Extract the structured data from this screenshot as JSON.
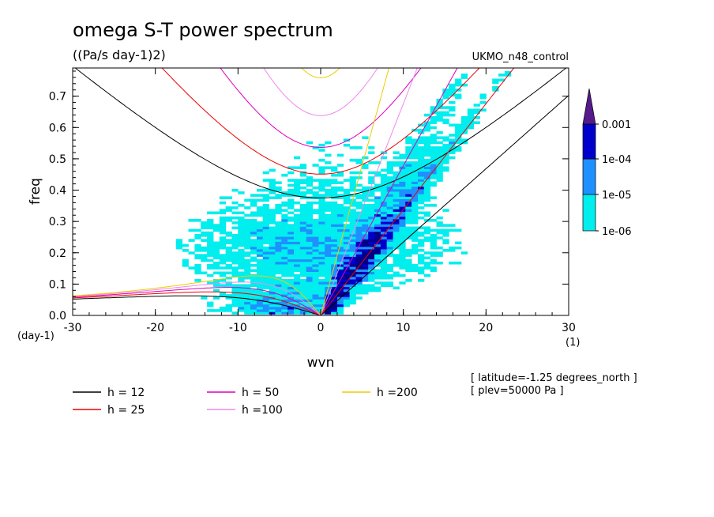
{
  "chart_data": {
    "type": "heatmap",
    "title": "omega S-T power spectrum",
    "units": "((Pa/s day-1)2)",
    "dataset": "UKMO_n48_control",
    "xlabel": "wvn",
    "ylabel": "freq",
    "x_unit": "(1)",
    "y_unit": "(day-1)",
    "xlim": [
      -30,
      30
    ],
    "ylim": [
      0,
      0.79
    ],
    "xticks": [
      "-30",
      "-20",
      "-10",
      "0",
      "10",
      "20",
      "30"
    ],
    "yticks": [
      "0.0",
      "0.1",
      "0.2",
      "0.3",
      "0.4",
      "0.5",
      "0.6",
      "0.7"
    ],
    "colorbar": {
      "labels": [
        "1e-06",
        "1e-05",
        "1e-04",
        "0.001"
      ],
      "levels": [
        1e-06,
        1e-05,
        0.0001,
        0.001
      ],
      "colors": [
        "#00eeee",
        "#1e90ff",
        "#0000cd",
        "#00008b",
        "#551a8b"
      ]
    },
    "dispersion_curves": [
      {
        "label": "h = 12",
        "h": 12,
        "color": "#000000"
      },
      {
        "label": "h = 25",
        "h": 25,
        "color": "#ee0000"
      },
      {
        "label": "h = 50",
        "h": 50,
        "color": "#dd00bb"
      },
      {
        "label": "h =100",
        "h": 100,
        "color": "#ee88ee"
      },
      {
        "label": "h =200",
        "h": 200,
        "color": "#eecc00"
      }
    ],
    "annotations": [
      "[ latitude=-1.25 degrees_north ]",
      "[ plev=50000 Pa ]"
    ]
  }
}
